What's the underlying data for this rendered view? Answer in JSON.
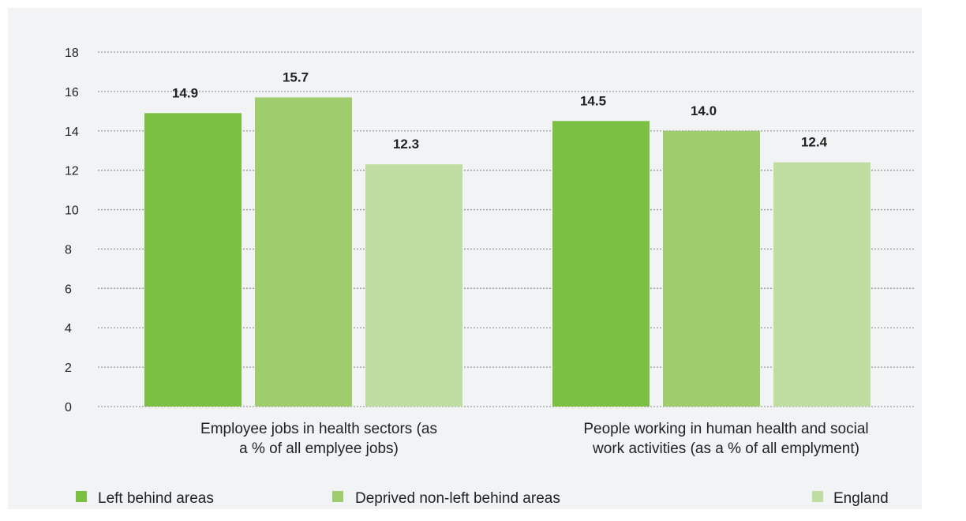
{
  "chart_data": {
    "type": "bar",
    "title": "",
    "xlabel": "",
    "ylabel": "",
    "ylim": [
      0,
      18
    ],
    "yticks": [
      0,
      2,
      4,
      6,
      8,
      10,
      12,
      14,
      16,
      18
    ],
    "grid": true,
    "legend_position": "bottom",
    "categories": [
      [
        "Employee jobs in health sectors (as",
        "a % of all emplyee jobs)"
      ],
      [
        "People working in human health and social",
        "work activities (as a % of all emplyment)"
      ]
    ],
    "series": [
      {
        "name": "Left behind areas",
        "color": "#7bc043",
        "values": [
          14.9,
          14.5
        ],
        "labels": [
          "14.9",
          "14.5"
        ]
      },
      {
        "name": "Deprived non-left behind areas",
        "color": "#9fcd6e",
        "values": [
          15.7,
          14.0
        ],
        "labels": [
          "15.7",
          "14.0"
        ]
      },
      {
        "name": "England",
        "color": "#bfdda0",
        "values": [
          12.3,
          12.4
        ],
        "labels": [
          "12.3",
          "12.4"
        ]
      }
    ]
  }
}
